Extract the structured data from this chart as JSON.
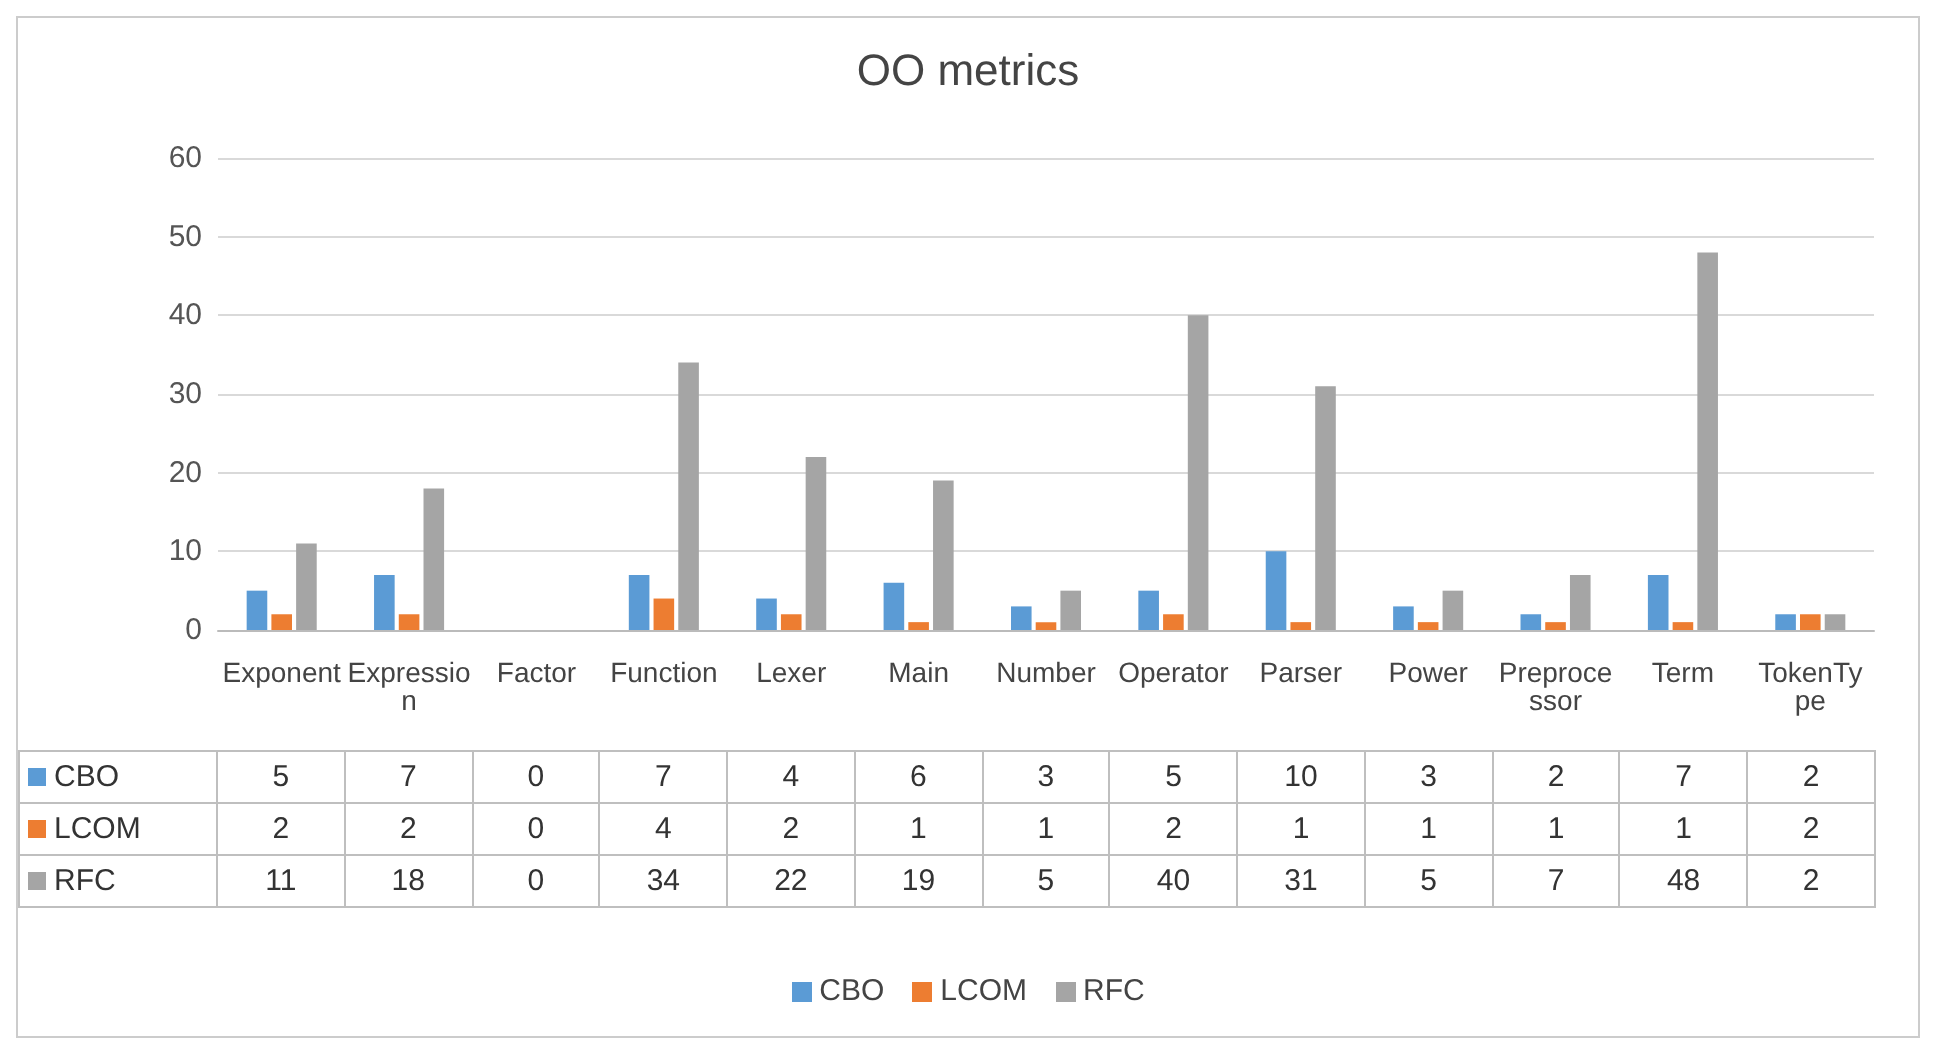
{
  "chart_data": {
    "type": "bar",
    "title": "OO metrics",
    "categories": [
      "Exponent",
      "Expression",
      "Factor",
      "Function",
      "Lexer",
      "Main",
      "Number",
      "Operator",
      "Parser",
      "Power",
      "Preprocessor",
      "Term",
      "TokenType"
    ],
    "series": [
      {
        "name": "CBO",
        "color": "#5b9bd5",
        "values": [
          5,
          7,
          0,
          7,
          4,
          6,
          3,
          5,
          10,
          3,
          2,
          7,
          2
        ]
      },
      {
        "name": "LCOM",
        "color": "#ed7d31",
        "values": [
          2,
          2,
          0,
          4,
          2,
          1,
          1,
          2,
          1,
          1,
          1,
          1,
          2
        ]
      },
      {
        "name": "RFC",
        "color": "#a5a5a5",
        "values": [
          11,
          18,
          0,
          34,
          22,
          19,
          5,
          40,
          31,
          5,
          7,
          48,
          2
        ]
      }
    ],
    "ylim": [
      0,
      60
    ],
    "yticks": [
      0,
      10,
      20,
      30,
      40,
      50,
      60
    ],
    "grid": "y",
    "legend": "bottom",
    "data_labels": true
  }
}
